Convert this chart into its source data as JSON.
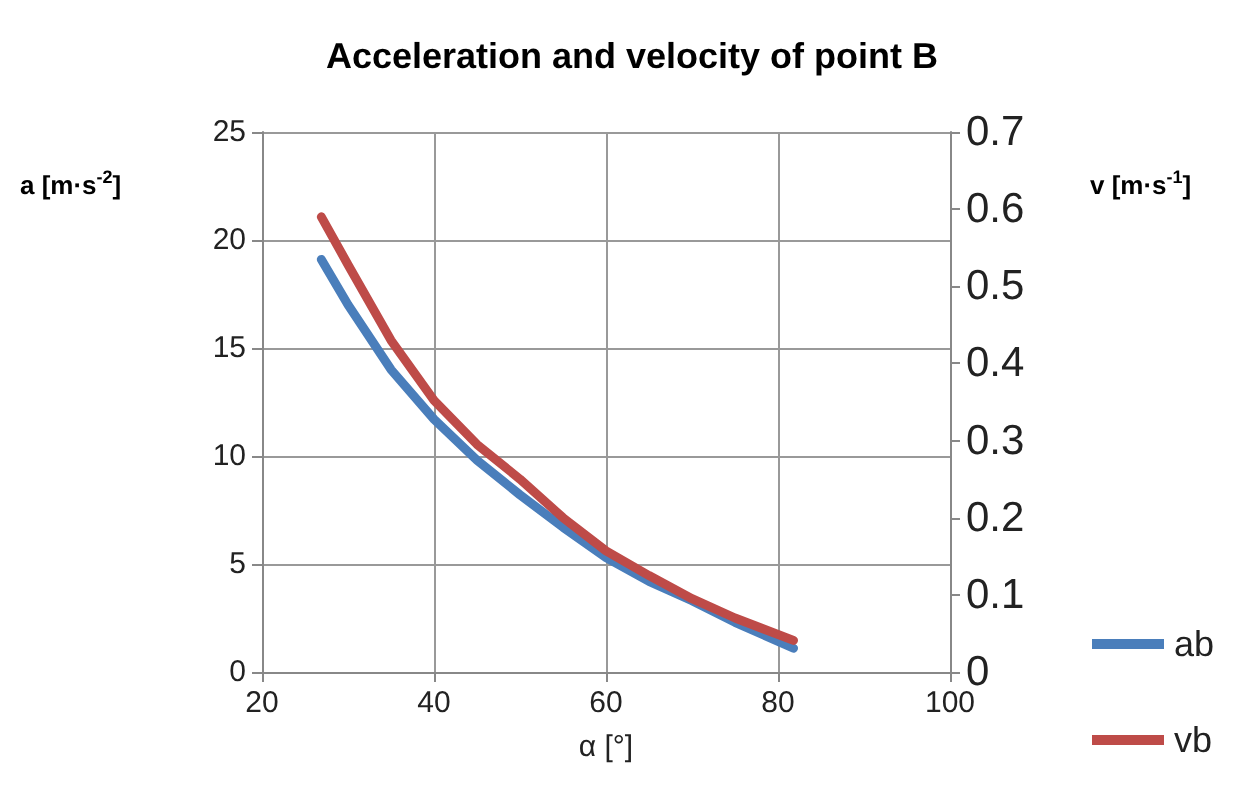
{
  "chart_data": {
    "type": "line",
    "title": "Acceleration and velocity of point B",
    "xlabel": "α [°]",
    "ylabel": "a [m·s$^{-2}$]",
    "y2label": "v [m·s$^{-1}$]",
    "x": [
      26.9,
      30,
      35,
      40,
      45,
      50,
      55,
      60,
      65,
      70,
      75,
      81.8
    ],
    "series": [
      {
        "name": "ab",
        "color": "#4a7ebb",
        "values": [
          19.1,
          17.0,
          14.0,
          11.7,
          9.8,
          8.2,
          6.7,
          5.3,
          4.2,
          3.3,
          2.3,
          1.1
        ]
      },
      {
        "name": "vb",
        "color": "#be4b48",
        "axis": "y2",
        "values": [
          0.59,
          0.528,
          0.43,
          0.352,
          0.295,
          0.25,
          0.2,
          0.157,
          0.125,
          0.095,
          0.07,
          0.041
        ]
      }
    ],
    "xlim": [
      20,
      100
    ],
    "xticks": [
      20,
      40,
      60,
      80,
      100
    ],
    "ylim": [
      0,
      25
    ],
    "yticks": [
      0,
      5,
      10,
      15,
      20,
      25
    ],
    "y2lim": [
      0,
      0.7
    ],
    "y2ticks": [
      0,
      0.1,
      0.2,
      0.3,
      0.4,
      0.5,
      0.6,
      0.7
    ],
    "grid": true,
    "legend": "bottom right",
    "marker": "none",
    "line_style": "solid"
  }
}
